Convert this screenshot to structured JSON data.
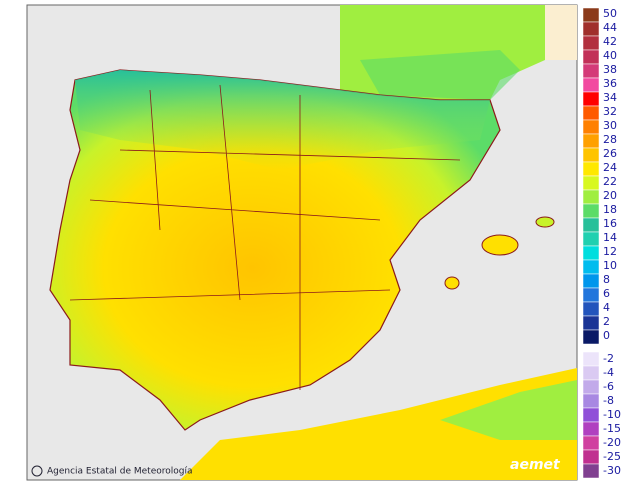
{
  "map": {
    "credit": "Agencia Estatal de Meteorología",
    "logo": "aemet",
    "legend": [
      {
        "label": "50",
        "color": "#8b3a1a"
      },
      {
        "label": "44",
        "color": "#a0302c"
      },
      {
        "label": "42",
        "color": "#b2303e"
      },
      {
        "label": "40",
        "color": "#c23058"
      },
      {
        "label": "38",
        "color": "#d43a78"
      },
      {
        "label": "36",
        "color": "#f24aa0"
      },
      {
        "label": "34",
        "color": "#ff0000"
      },
      {
        "label": "32",
        "color": "#ff5a00"
      },
      {
        "label": "30",
        "color": "#ff8000"
      },
      {
        "label": "28",
        "color": "#ffa000"
      },
      {
        "label": "26",
        "color": "#ffc400"
      },
      {
        "label": "24",
        "color": "#ffe800"
      },
      {
        "label": "22",
        "color": "#d8f820"
      },
      {
        "label": "20",
        "color": "#a0ee40"
      },
      {
        "label": "18",
        "color": "#5cdc68"
      },
      {
        "label": "16",
        "color": "#28c09a"
      },
      {
        "label": "14",
        "color": "#20d0b0"
      },
      {
        "label": "12",
        "color": "#00dede"
      },
      {
        "label": "10",
        "color": "#00bcee"
      },
      {
        "label": "8",
        "color": "#0096ec"
      },
      {
        "label": "6",
        "color": "#2276dc"
      },
      {
        "label": "4",
        "color": "#2254bc"
      },
      {
        "label": "2",
        "color": "#1a3496"
      },
      {
        "label": "0",
        "color": "#0a1a66"
      },
      {
        "label": "-2",
        "color": "#ece4fa"
      },
      {
        "label": "-4",
        "color": "#dacaf2"
      },
      {
        "label": "-6",
        "color": "#c2aaea"
      },
      {
        "label": "-8",
        "color": "#a888e2"
      },
      {
        "label": "-10",
        "color": "#9050d8"
      },
      {
        "label": "-15",
        "color": "#b040c0"
      },
      {
        "label": "-20",
        "color": "#d040a0"
      },
      {
        "label": "-25",
        "color": "#c03090"
      },
      {
        "label": "-30",
        "color": "#804090"
      }
    ]
  }
}
